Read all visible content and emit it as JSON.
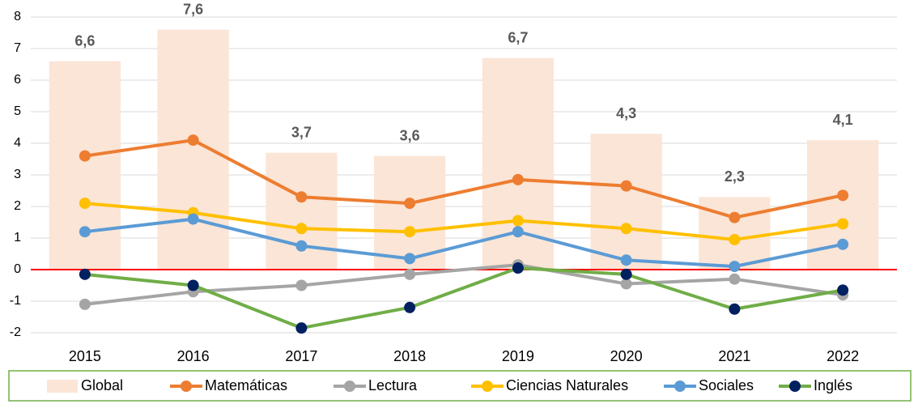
{
  "chart_data": {
    "type": "combo",
    "categories": [
      "2015",
      "2016",
      "2017",
      "2018",
      "2019",
      "2020",
      "2021",
      "2022"
    ],
    "series": [
      {
        "name": "Global",
        "type": "bar",
        "color": "#fbe5d6",
        "values": [
          6.6,
          7.6,
          3.7,
          3.6,
          6.7,
          4.3,
          2.3,
          4.1
        ],
        "value_labels": [
          "6,6",
          "7,6",
          "3,7",
          "3,6",
          "6,7",
          "4,3",
          "2,3",
          "4,1"
        ]
      },
      {
        "name": "Matemáticas",
        "type": "line",
        "color": "#ed7d31",
        "values": [
          3.6,
          4.1,
          2.3,
          2.1,
          2.85,
          2.65,
          1.65,
          2.35
        ]
      },
      {
        "name": "Lectura",
        "type": "line",
        "color": "#a5a5a5",
        "values": [
          -1.1,
          -0.7,
          -0.5,
          -0.15,
          0.15,
          -0.45,
          -0.3,
          -0.8
        ]
      },
      {
        "name": "Ciencias Naturales",
        "type": "line",
        "color": "#ffc000",
        "values": [
          2.1,
          1.8,
          1.3,
          1.2,
          1.55,
          1.3,
          0.95,
          1.45
        ]
      },
      {
        "name": "Sociales",
        "type": "line",
        "color": "#5b9bd5",
        "values": [
          1.2,
          1.6,
          0.75,
          0.35,
          1.2,
          0.3,
          0.1,
          0.8
        ]
      },
      {
        "name": "Inglés",
        "type": "line",
        "color": "#70ad47",
        "marker_color": "#002060",
        "values": [
          -0.15,
          -0.5,
          -1.85,
          -1.2,
          0.05,
          -0.15,
          -1.25,
          -0.65
        ]
      }
    ],
    "ylim": [
      -2,
      8
    ],
    "yticks": [
      -2,
      -1,
      0,
      1,
      2,
      3,
      4,
      5,
      6,
      7,
      8
    ],
    "grid": true,
    "zero_line_color": "#ff0000",
    "legend": "bottom"
  }
}
